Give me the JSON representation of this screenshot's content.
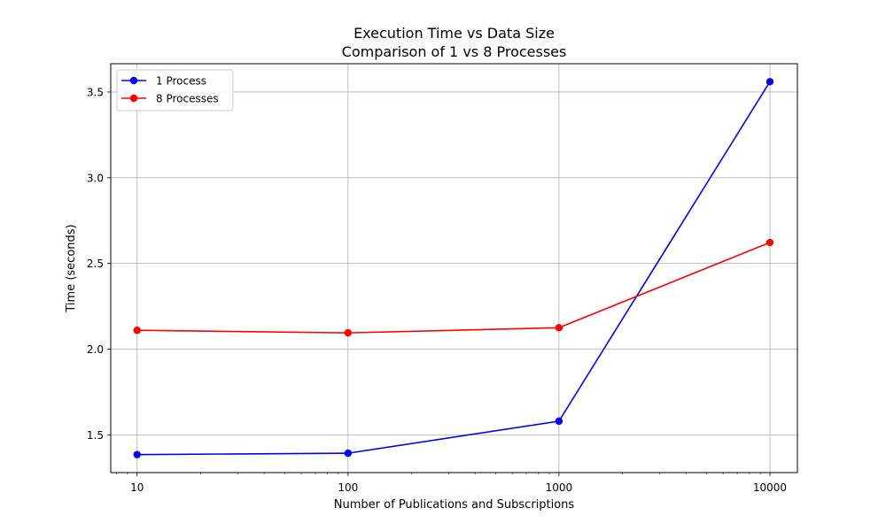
{
  "chart_data": {
    "type": "line",
    "title": "Execution Time vs Data Size",
    "subtitle": "Comparison of 1 vs 8 Processes",
    "xlabel": "Number of Publications and Subscriptions",
    "ylabel": "Time (seconds)",
    "xscale": "log",
    "xlim": [
      7.5,
      13500
    ],
    "ylim": [
      1.28,
      3.665
    ],
    "x": [
      10,
      100,
      1000,
      10000
    ],
    "x_tick_labels": [
      "10",
      "100",
      "1000",
      "10000"
    ],
    "y_ticks": [
      1.5,
      2.0,
      2.5,
      3.0,
      3.5
    ],
    "y_tick_labels": [
      "1.5",
      "2.0",
      "2.5",
      "3.0",
      "3.5"
    ],
    "grid": true,
    "legend_position": "top-left",
    "series": [
      {
        "name": "1 Process",
        "color": "#0000ff",
        "values": [
          1.385,
          1.393,
          1.58,
          3.56
        ]
      },
      {
        "name": "8 Processes",
        "color": "#ff0000",
        "values": [
          2.11,
          2.095,
          2.125,
          2.622
        ]
      }
    ]
  }
}
